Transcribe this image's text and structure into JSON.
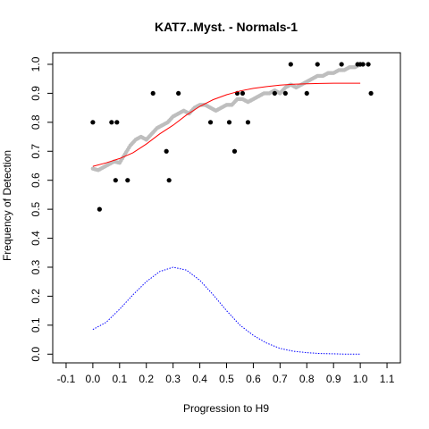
{
  "chart_data": {
    "type": "scatter",
    "title": "KAT7..Myst. - Normals-1",
    "xlabel": "Progression to H9",
    "ylabel": "Frequency of Detection",
    "xlim": [
      -0.15,
      1.15
    ],
    "ylim": [
      -0.03,
      1.04
    ],
    "xticks": [
      -0.1,
      0.0,
      0.1,
      0.2,
      0.3,
      0.4,
      0.5,
      0.6,
      0.7,
      0.8,
      0.9,
      1.0,
      1.1
    ],
    "xtick_labels": [
      "-0.1",
      "0.0",
      "0.1",
      "0.2",
      "0.3",
      "0.4",
      "0.5",
      "0.6",
      "0.7",
      "0.8",
      "0.9",
      "1.0",
      "1.1"
    ],
    "yticks": [
      0.0,
      0.1,
      0.2,
      0.3,
      0.4,
      0.5,
      0.6,
      0.7,
      0.8,
      0.9,
      1.0
    ],
    "ytick_labels": [
      "0.0",
      "0.1",
      "0.2",
      "0.3",
      "0.4",
      "0.5",
      "0.6",
      "0.7",
      "0.8",
      "0.9",
      "1.0"
    ],
    "grid": false,
    "series": [
      {
        "kind": "points",
        "color": "#000000",
        "x": [
          0.0,
          0.025,
          0.07,
          0.085,
          0.09,
          0.13,
          0.225,
          0.275,
          0.285,
          0.32,
          0.44,
          0.51,
          0.53,
          0.54,
          0.56,
          0.58,
          0.68,
          0.72,
          0.74,
          0.8,
          0.84,
          0.93,
          0.99,
          1.0,
          1.01,
          1.03,
          1.04
        ],
        "y": [
          0.8,
          0.5,
          0.8,
          0.6,
          0.8,
          0.6,
          0.9,
          0.7,
          0.6,
          0.9,
          0.8,
          0.8,
          0.7,
          0.9,
          0.9,
          0.8,
          0.9,
          0.9,
          1.0,
          0.9,
          1.0,
          1.0,
          1.0,
          1.0,
          1.0,
          1.0,
          0.9
        ]
      },
      {
        "kind": "smoothed",
        "color": "#bebebe",
        "x": [
          0.0,
          0.02,
          0.04,
          0.06,
          0.08,
          0.1,
          0.12,
          0.14,
          0.16,
          0.18,
          0.2,
          0.22,
          0.24,
          0.26,
          0.28,
          0.3,
          0.32,
          0.34,
          0.36,
          0.38,
          0.4,
          0.42,
          0.44,
          0.46,
          0.48,
          0.5,
          0.52,
          0.54,
          0.56,
          0.58,
          0.6,
          0.62,
          0.64,
          0.66,
          0.68,
          0.7,
          0.72,
          0.74,
          0.76,
          0.78,
          0.8,
          0.82,
          0.84,
          0.86,
          0.88,
          0.9,
          0.92,
          0.94,
          0.96,
          0.98,
          1.0
        ],
        "y": [
          0.64,
          0.635,
          0.645,
          0.655,
          0.665,
          0.66,
          0.69,
          0.72,
          0.74,
          0.75,
          0.74,
          0.76,
          0.78,
          0.79,
          0.8,
          0.82,
          0.83,
          0.84,
          0.83,
          0.85,
          0.86,
          0.86,
          0.85,
          0.84,
          0.85,
          0.86,
          0.86,
          0.88,
          0.88,
          0.87,
          0.88,
          0.89,
          0.9,
          0.9,
          0.91,
          0.9,
          0.92,
          0.93,
          0.92,
          0.93,
          0.94,
          0.95,
          0.96,
          0.96,
          0.97,
          0.97,
          0.98,
          0.98,
          0.99,
          0.99,
          1.0
        ]
      },
      {
        "kind": "fit",
        "color": "#ff0000",
        "x": [
          0.0,
          0.05,
          0.1,
          0.15,
          0.2,
          0.25,
          0.3,
          0.35,
          0.4,
          0.45,
          0.5,
          0.55,
          0.6,
          0.65,
          0.7,
          0.75,
          0.8,
          0.85,
          0.9,
          0.95,
          1.0
        ],
        "y": [
          0.648,
          0.66,
          0.675,
          0.695,
          0.725,
          0.76,
          0.79,
          0.825,
          0.855,
          0.878,
          0.895,
          0.908,
          0.917,
          0.923,
          0.928,
          0.931,
          0.933,
          0.934,
          0.935,
          0.935,
          0.935
        ]
      },
      {
        "kind": "density",
        "color": "#0000ff",
        "x": [
          0.0,
          0.05,
          0.1,
          0.15,
          0.2,
          0.25,
          0.3,
          0.35,
          0.4,
          0.45,
          0.5,
          0.55,
          0.6,
          0.65,
          0.7,
          0.75,
          0.8,
          0.85,
          0.9,
          0.95,
          1.0
        ],
        "y": [
          0.085,
          0.11,
          0.155,
          0.205,
          0.25,
          0.285,
          0.3,
          0.29,
          0.255,
          0.205,
          0.15,
          0.1,
          0.065,
          0.038,
          0.02,
          0.01,
          0.005,
          0.002,
          0.001,
          0.0,
          0.0
        ]
      }
    ]
  }
}
